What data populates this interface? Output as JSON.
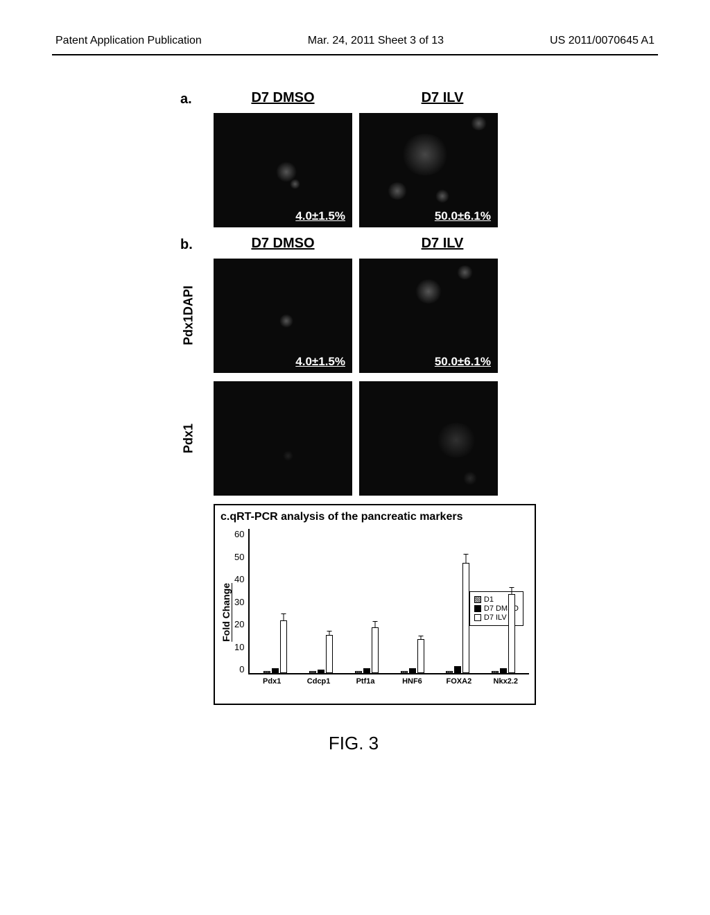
{
  "header": {
    "left": "Patent Application Publication",
    "center": "Mar. 24, 2011  Sheet 3 of 13",
    "right": "US 2011/0070645 A1"
  },
  "panel_a": {
    "label": "a.",
    "col1_header": "D7 DMSO",
    "col2_header": "D7 ILV",
    "img1_text": "4.0±1.5%",
    "img2_text": "50.0±6.1%"
  },
  "panel_b": {
    "label": "b.",
    "col1_header": "D7 DMSO",
    "col2_header": "D7 ILV",
    "row1_label": "Pdx1DAPI",
    "row2_label": "Pdx1",
    "img1_text": "4.0±1.5%",
    "img2_text": "50.0±6.1%"
  },
  "chart": {
    "title": "c.qRT-PCR analysis of the pancreatic markers",
    "y_label": "Fold Change",
    "y_ticks": [
      "60",
      "50",
      "40",
      "30",
      "20",
      "10",
      "0"
    ],
    "y_max": 60,
    "legend": {
      "d1": "D1",
      "dmso": "D7 DMSO",
      "ilv": "D7 ILV"
    },
    "markers": [
      {
        "name": "Pdx1",
        "d1": 1,
        "dmso": 2,
        "ilv": 22,
        "ilv_err": 3
      },
      {
        "name": "Cdcp1",
        "d1": 1,
        "dmso": 1.5,
        "ilv": 16,
        "ilv_err": 2
      },
      {
        "name": "Ptf1a",
        "d1": 1,
        "dmso": 2,
        "ilv": 19,
        "ilv_err": 3
      },
      {
        "name": "HNF6",
        "d1": 1,
        "dmso": 2,
        "ilv": 14,
        "ilv_err": 2
      },
      {
        "name": "FOXA2",
        "d1": 1,
        "dmso": 3,
        "ilv": 46,
        "ilv_err": 4
      },
      {
        "name": "Nkx2.2",
        "d1": 1,
        "dmso": 2,
        "ilv": 33,
        "ilv_err": 3
      }
    ],
    "colors": {
      "d1": "#888888",
      "dmso": "#000000",
      "ilv": "#ffffff",
      "border": "#000000"
    }
  },
  "caption": "FIG. 3"
}
